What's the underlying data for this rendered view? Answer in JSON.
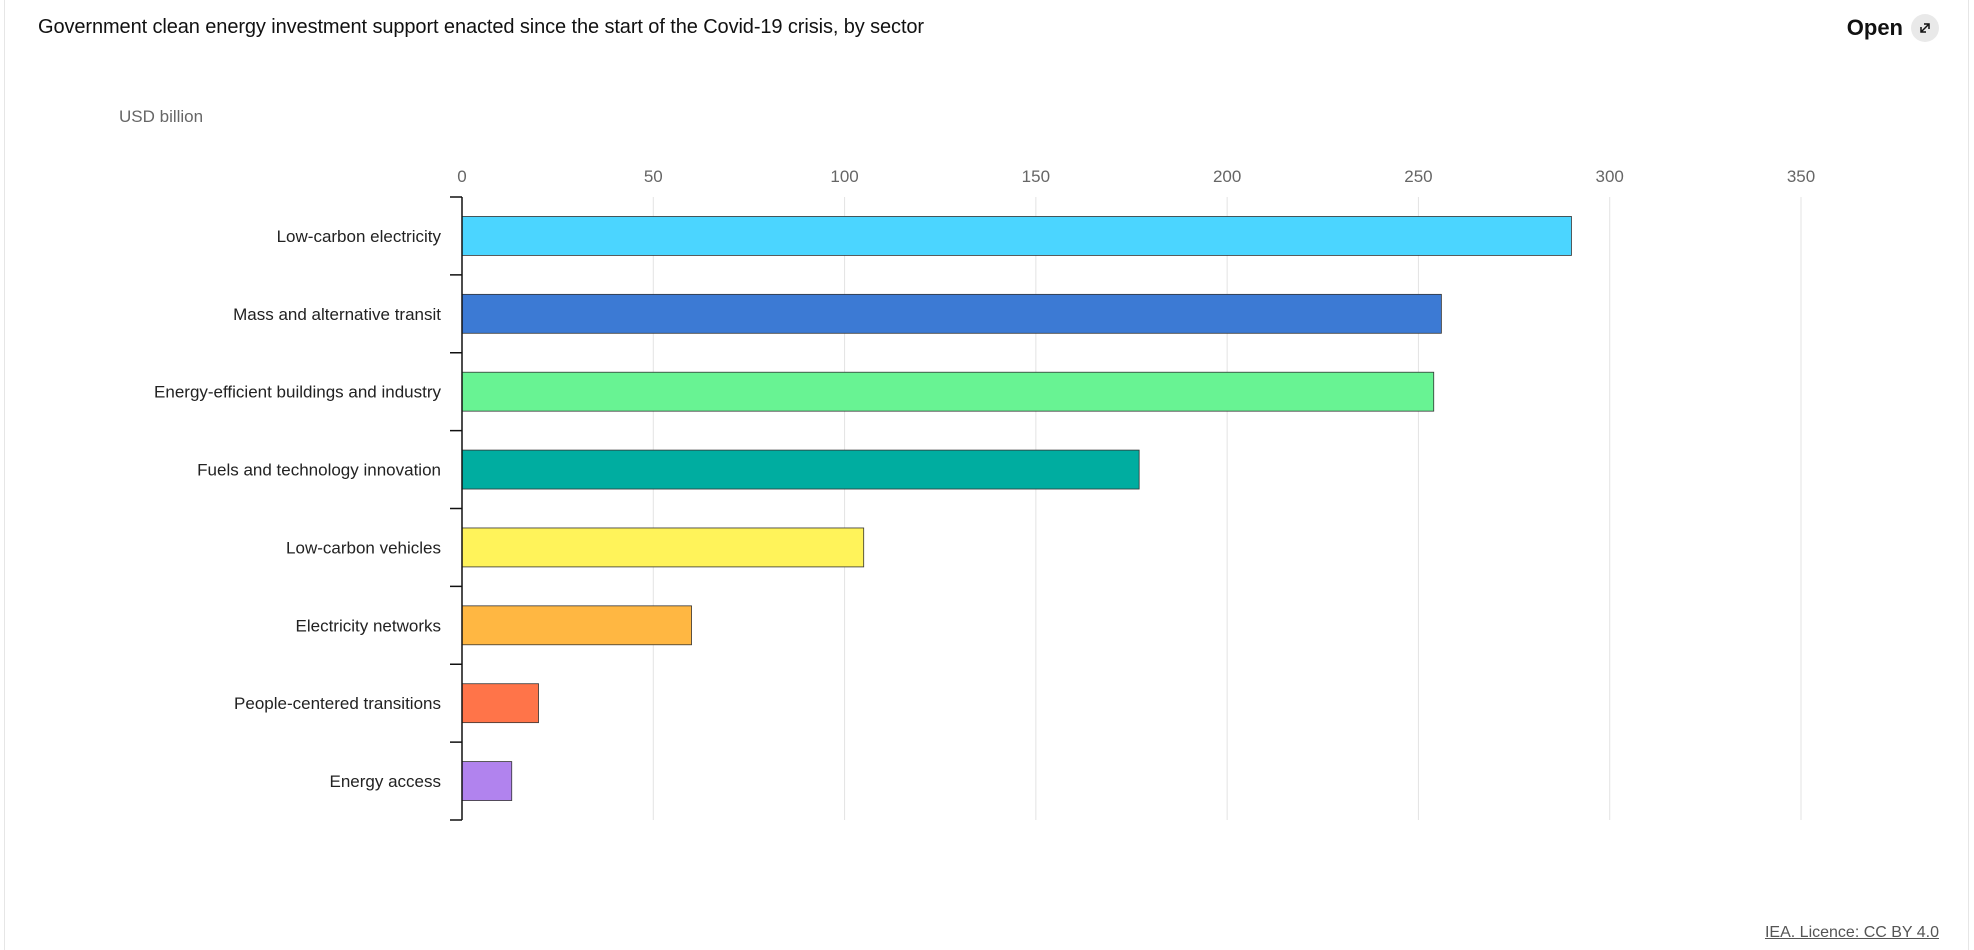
{
  "header": {
    "title": "Government clean energy investment support enacted since the start of the Covid-19 crisis, by sector",
    "open_label": "Open",
    "open_icon": "expand-arrow-icon"
  },
  "footer": {
    "licence": "IEA. Licence: CC BY 4.0"
  },
  "chart_data": {
    "type": "bar",
    "orientation": "horizontal",
    "title": "Government clean energy investment support enacted since the start of the Covid-19 crisis, by sector",
    "unit_label": "USD billion",
    "xlim": [
      0,
      350
    ],
    "ticks": [
      0,
      50,
      100,
      150,
      200,
      250,
      300,
      350
    ],
    "tick_labels": [
      "0",
      "50",
      "100",
      "150",
      "200",
      "250",
      "300",
      "350"
    ],
    "grid": true,
    "categories": [
      "Low-carbon electricity",
      "Mass and alternative transit",
      "Energy-efficient buildings and industry",
      "Fuels and technology innovation",
      "Low-carbon vehicles",
      "Electricity networks",
      "People-centered transitions",
      "Energy access"
    ],
    "values": [
      290,
      256,
      254,
      177,
      105,
      60,
      20,
      13
    ],
    "colors": [
      "#4BD5FF",
      "#3C7AD4",
      "#68F393",
      "#00ADA0",
      "#FFF35A",
      "#FFB742",
      "#FF7449",
      "#B183EE"
    ]
  }
}
